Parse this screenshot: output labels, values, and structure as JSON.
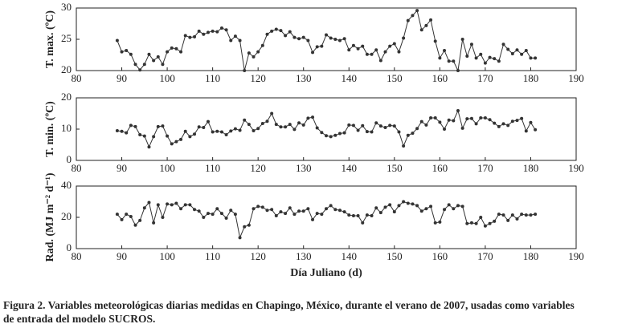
{
  "chart_data": [
    {
      "type": "line",
      "ylabel": "T. max. (ºC)",
      "color": "#333333",
      "x": [
        89,
        90,
        91,
        92,
        93,
        94,
        95,
        96,
        97,
        98,
        99,
        100,
        101,
        102,
        103,
        104,
        105,
        106,
        107,
        108,
        109,
        110,
        111,
        112,
        113,
        114,
        115,
        116,
        117,
        118,
        119,
        120,
        121,
        122,
        123,
        124,
        125,
        126,
        127,
        128,
        129,
        130,
        131,
        132,
        133,
        134,
        135,
        136,
        137,
        138,
        139,
        140,
        141,
        142,
        143,
        144,
        145,
        146,
        147,
        148,
        149,
        150,
        151,
        152,
        153,
        154,
        155,
        156,
        157,
        158,
        159,
        160,
        161,
        162,
        163,
        164,
        165,
        166,
        167,
        168,
        169,
        170,
        171,
        172,
        173,
        174,
        175,
        176,
        177,
        178,
        179,
        180,
        181
      ],
      "values": [
        24.8,
        23,
        23.2,
        22.6,
        21,
        20.1,
        21,
        22.6,
        21.6,
        22.2,
        21,
        23,
        23.6,
        23.5,
        23,
        25.6,
        25.3,
        25.4,
        26.3,
        25.8,
        26.1,
        26.3,
        26.2,
        26.8,
        26.5,
        24.8,
        25.5,
        24.8,
        20,
        22.8,
        22.2,
        23,
        24,
        25.8,
        26.3,
        26.6,
        26.4,
        25.6,
        26.2,
        25.3,
        25.1,
        25.3,
        24.8,
        22.9,
        23.8,
        23.9,
        25.7,
        25.2,
        25,
        24.8,
        25.1,
        23.3,
        24,
        23.5,
        23.9,
        22.6,
        22.6,
        23.3,
        21.6,
        23,
        23.9,
        24.3,
        23,
        25.2,
        28,
        28.8,
        29.6,
        26.5,
        27.2,
        28.1,
        24.7,
        22,
        23.2,
        21.5,
        21.5,
        20,
        25,
        22.3,
        24.2,
        22,
        22.6,
        21.2,
        22.1,
        21.9,
        21.5,
        24.2,
        23.4,
        22.7,
        23.3,
        22.6,
        23.2,
        22,
        22
      ],
      "xlim": [
        80,
        190
      ],
      "xticks": [
        80,
        90,
        100,
        110,
        120,
        130,
        140,
        150,
        160,
        170,
        180,
        190
      ],
      "ylim": [
        20,
        30
      ],
      "yticks": [
        20,
        25,
        30
      ]
    },
    {
      "type": "line",
      "ylabel": "T. min. (ºC)",
      "color": "#333333",
      "x": [
        89,
        90,
        91,
        92,
        93,
        94,
        95,
        96,
        97,
        98,
        99,
        100,
        101,
        102,
        103,
        104,
        105,
        106,
        107,
        108,
        109,
        110,
        111,
        112,
        113,
        114,
        115,
        116,
        117,
        118,
        119,
        120,
        121,
        122,
        123,
        124,
        125,
        126,
        127,
        128,
        129,
        130,
        131,
        132,
        133,
        134,
        135,
        136,
        137,
        138,
        139,
        140,
        141,
        142,
        143,
        144,
        145,
        146,
        147,
        148,
        149,
        150,
        151,
        152,
        153,
        154,
        155,
        156,
        157,
        158,
        159,
        160,
        161,
        162,
        163,
        164,
        165,
        166,
        167,
        168,
        169,
        170,
        171,
        172,
        173,
        174,
        175,
        176,
        177,
        178,
        179,
        180,
        181
      ],
      "values": [
        9.5,
        9.3,
        8.8,
        11.2,
        10.8,
        8.2,
        7.8,
        4.3,
        7.6,
        10.8,
        11,
        7.8,
        5.3,
        6,
        6.7,
        9.3,
        7.6,
        8.4,
        10.7,
        10.5,
        12.4,
        9.1,
        9.3,
        9.1,
        8.2,
        9.4,
        10.1,
        9.6,
        12.9,
        11.5,
        9.5,
        10.2,
        11.8,
        12.5,
        15,
        11.5,
        10.7,
        10.7,
        11.5,
        9.9,
        12,
        11.3,
        13.5,
        13.8,
        10.4,
        8.9,
        7.9,
        7.6,
        8,
        8.6,
        8.8,
        11.3,
        11.2,
        9.6,
        11.1,
        9.2,
        9.1,
        12,
        11,
        10.5,
        11.2,
        11,
        9.1,
        4.6,
        8,
        8.7,
        10.2,
        12.4,
        11.3,
        13.6,
        13.6,
        12.2,
        10,
        12.9,
        12.7,
        15.9,
        10.3,
        13.3,
        13.4,
        11.7,
        13.6,
        13.6,
        13,
        11.9,
        10.8,
        11.7,
        11.2,
        12.5,
        12.8,
        13.4,
        9.4,
        12.1,
        9.8
      ],
      "xlim": [
        80,
        190
      ],
      "xticks": [
        80,
        90,
        100,
        110,
        120,
        130,
        140,
        150,
        160,
        170,
        180,
        190
      ],
      "ylim": [
        0,
        20
      ],
      "yticks": [
        0,
        10,
        20
      ]
    },
    {
      "type": "line",
      "ylabel": "Rad. (MJ m⁻² d⁻¹)",
      "xlabel": "Día Juliano (d)",
      "color": "#333333",
      "x": [
        89,
        90,
        91,
        92,
        93,
        94,
        95,
        96,
        97,
        98,
        99,
        100,
        101,
        102,
        103,
        104,
        105,
        106,
        107,
        108,
        109,
        110,
        111,
        112,
        113,
        114,
        115,
        116,
        117,
        118,
        119,
        120,
        121,
        122,
        123,
        124,
        125,
        126,
        127,
        128,
        129,
        130,
        131,
        132,
        133,
        134,
        135,
        136,
        137,
        138,
        139,
        140,
        141,
        142,
        143,
        144,
        145,
        146,
        147,
        148,
        149,
        150,
        151,
        152,
        153,
        154,
        155,
        156,
        157,
        158,
        159,
        160,
        161,
        162,
        163,
        164,
        165,
        166,
        167,
        168,
        169,
        170,
        171,
        172,
        173,
        174,
        175,
        176,
        177,
        178,
        179,
        180,
        181
      ],
      "values": [
        22,
        18.5,
        22,
        20.5,
        15,
        18,
        26,
        29.5,
        16.5,
        28,
        20,
        28.5,
        28,
        29,
        25.5,
        28,
        28,
        25,
        24,
        20,
        22.5,
        22,
        25.5,
        22.5,
        19.5,
        24.5,
        22,
        7,
        14,
        15,
        25.5,
        27,
        26.5,
        24.5,
        25,
        21,
        23.5,
        22.5,
        26,
        22,
        24,
        24,
        25.5,
        18.5,
        22.5,
        22,
        25.5,
        27.5,
        25,
        24.5,
        23.5,
        21.5,
        21,
        21,
        16.5,
        21.5,
        21,
        26,
        23,
        26.5,
        28,
        23.5,
        27.5,
        30,
        29,
        28.5,
        27.5,
        24,
        25.5,
        27,
        16.5,
        17,
        25,
        28,
        25.5,
        27.5,
        27,
        16,
        16.5,
        16,
        20,
        14.5,
        16,
        17.5,
        22,
        21.5,
        18,
        21.5,
        19,
        22,
        21.5,
        21.5,
        22
      ],
      "xlim": [
        80,
        190
      ],
      "xticks": [
        80,
        90,
        100,
        110,
        120,
        130,
        140,
        150,
        160,
        170,
        180,
        190
      ],
      "ylim": [
        0,
        40
      ],
      "yticks": [
        0,
        20,
        40
      ]
    }
  ],
  "caption": [
    "Figura 2. Variables meteorológicas diarias medidas en Chapingo, México, durante el verano de 2007, usadas como variables",
    "de entrada del modelo SUCROS."
  ]
}
